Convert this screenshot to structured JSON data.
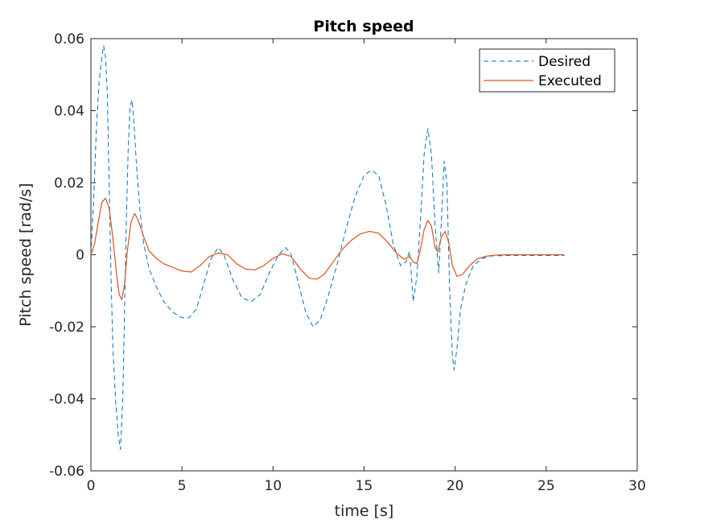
{
  "chart_data": {
    "type": "line",
    "title": "Pitch speed",
    "xlabel": "time [s]",
    "ylabel": "Pitch speed [rad/s]",
    "xlim": [
      0,
      30
    ],
    "ylim": [
      -0.06,
      0.06
    ],
    "xticks": [
      0,
      5,
      10,
      15,
      20,
      25,
      30
    ],
    "yticks": [
      -0.06,
      -0.04,
      -0.02,
      0,
      0.02,
      0.04,
      0.06
    ],
    "xtick_labels": [
      "0",
      "5",
      "10",
      "15",
      "20",
      "25",
      "30"
    ],
    "ytick_labels": [
      "-0.06",
      "-0.04",
      "-0.02",
      "0",
      "0.02",
      "0.04",
      "0.06"
    ],
    "grid": false,
    "legend_position": "top-right",
    "series": [
      {
        "name": "Desired",
        "color": "#0072BD",
        "style": "dashed",
        "points": [
          [
            0,
            0
          ],
          [
            0.15,
            0.015
          ],
          [
            0.3,
            0.035
          ],
          [
            0.45,
            0.048
          ],
          [
            0.6,
            0.055
          ],
          [
            0.7,
            0.058
          ],
          [
            0.8,
            0.055
          ],
          [
            0.9,
            0.045
          ],
          [
            1.0,
            0.02
          ],
          [
            1.1,
            -0.005
          ],
          [
            1.2,
            -0.025
          ],
          [
            1.35,
            -0.04
          ],
          [
            1.5,
            -0.05
          ],
          [
            1.62,
            -0.054
          ],
          [
            1.75,
            -0.04
          ],
          [
            1.85,
            -0.015
          ],
          [
            1.95,
            0.01
          ],
          [
            2.05,
            0.03
          ],
          [
            2.15,
            0.041
          ],
          [
            2.25,
            0.043
          ],
          [
            2.35,
            0.038
          ],
          [
            2.5,
            0.025
          ],
          [
            2.7,
            0.012
          ],
          [
            2.9,
            0.003
          ],
          [
            3.2,
            -0.004
          ],
          [
            3.6,
            -0.009
          ],
          [
            4.0,
            -0.013
          ],
          [
            4.5,
            -0.016
          ],
          [
            5.0,
            -0.0175
          ],
          [
            5.4,
            -0.0175
          ],
          [
            5.8,
            -0.015
          ],
          [
            6.2,
            -0.008
          ],
          [
            6.6,
            -0.001
          ],
          [
            7.0,
            0.002
          ],
          [
            7.3,
            0.0
          ],
          [
            7.8,
            -0.007
          ],
          [
            8.3,
            -0.012
          ],
          [
            8.8,
            -0.013
          ],
          [
            9.3,
            -0.011
          ],
          [
            9.8,
            -0.005
          ],
          [
            10.3,
            0.0
          ],
          [
            10.7,
            0.002
          ],
          [
            11.0,
            0.0
          ],
          [
            11.4,
            -0.008
          ],
          [
            11.8,
            -0.016
          ],
          [
            12.2,
            -0.02
          ],
          [
            12.6,
            -0.018
          ],
          [
            13.0,
            -0.012
          ],
          [
            13.5,
            -0.003
          ],
          [
            14.0,
            0.007
          ],
          [
            14.5,
            0.016
          ],
          [
            15.0,
            0.022
          ],
          [
            15.4,
            0.0235
          ],
          [
            15.8,
            0.022
          ],
          [
            16.2,
            0.014
          ],
          [
            16.6,
            0.003
          ],
          [
            17.0,
            -0.003
          ],
          [
            17.3,
            -0.002
          ],
          [
            17.5,
            0.001
          ],
          [
            17.7,
            -0.013
          ],
          [
            17.9,
            -0.006
          ],
          [
            18.1,
            0.01
          ],
          [
            18.3,
            0.028
          ],
          [
            18.5,
            0.035
          ],
          [
            18.7,
            0.028
          ],
          [
            18.9,
            0.008
          ],
          [
            19.1,
            -0.005
          ],
          [
            19.25,
            0.01
          ],
          [
            19.4,
            0.026
          ],
          [
            19.55,
            0.02
          ],
          [
            19.7,
            -0.01
          ],
          [
            19.85,
            -0.028
          ],
          [
            19.95,
            -0.032
          ],
          [
            20.1,
            -0.026
          ],
          [
            20.3,
            -0.015
          ],
          [
            20.6,
            -0.008
          ],
          [
            21.0,
            -0.003
          ],
          [
            21.5,
            -0.001
          ],
          [
            22.0,
            -0.0003
          ],
          [
            23.0,
            -0.0002
          ],
          [
            24.0,
            -0.0002
          ],
          [
            25.0,
            -0.0002
          ],
          [
            26.0,
            -0.0002
          ]
        ]
      },
      {
        "name": "Executed",
        "color": "#D95319",
        "style": "solid",
        "points": [
          [
            0,
            0
          ],
          [
            0.2,
            0.003
          ],
          [
            0.4,
            0.009
          ],
          [
            0.6,
            0.0145
          ],
          [
            0.8,
            0.0157
          ],
          [
            1.0,
            0.013
          ],
          [
            1.2,
            0.005
          ],
          [
            1.4,
            -0.005
          ],
          [
            1.55,
            -0.011
          ],
          [
            1.7,
            -0.0125
          ],
          [
            1.85,
            -0.008
          ],
          [
            2.0,
            0.001
          ],
          [
            2.2,
            0.009
          ],
          [
            2.4,
            0.0115
          ],
          [
            2.6,
            0.0095
          ],
          [
            2.9,
            0.005
          ],
          [
            3.2,
            0.001
          ],
          [
            3.6,
            -0.001
          ],
          [
            4.0,
            -0.0025
          ],
          [
            4.5,
            -0.0035
          ],
          [
            5.0,
            -0.0045
          ],
          [
            5.5,
            -0.0048
          ],
          [
            6.0,
            -0.003
          ],
          [
            6.5,
            -0.0005
          ],
          [
            7.0,
            0.0005
          ],
          [
            7.5,
            0.0
          ],
          [
            8.0,
            -0.0025
          ],
          [
            8.5,
            -0.004
          ],
          [
            9.0,
            -0.0042
          ],
          [
            9.5,
            -0.003
          ],
          [
            10.0,
            -0.001
          ],
          [
            10.5,
            0.0003
          ],
          [
            11.0,
            -0.0005
          ],
          [
            11.5,
            -0.004
          ],
          [
            12.0,
            -0.0065
          ],
          [
            12.4,
            -0.0068
          ],
          [
            12.8,
            -0.0055
          ],
          [
            13.3,
            -0.002
          ],
          [
            13.8,
            0.0015
          ],
          [
            14.3,
            0.004
          ],
          [
            14.8,
            0.0058
          ],
          [
            15.3,
            0.0065
          ],
          [
            15.8,
            0.006
          ],
          [
            16.3,
            0.0035
          ],
          [
            16.8,
            0.0003
          ],
          [
            17.2,
            -0.0012
          ],
          [
            17.5,
            -0.0005
          ],
          [
            17.7,
            -0.002
          ],
          [
            17.9,
            -0.0025
          ],
          [
            18.1,
            0.0015
          ],
          [
            18.3,
            0.007
          ],
          [
            18.5,
            0.0095
          ],
          [
            18.7,
            0.008
          ],
          [
            18.9,
            0.002
          ],
          [
            19.05,
            0.0008
          ],
          [
            19.25,
            0.005
          ],
          [
            19.45,
            0.0065
          ],
          [
            19.65,
            0.0035
          ],
          [
            19.85,
            -0.003
          ],
          [
            20.1,
            -0.006
          ],
          [
            20.4,
            -0.0055
          ],
          [
            20.8,
            -0.003
          ],
          [
            21.2,
            -0.0012
          ],
          [
            21.7,
            -0.0004
          ],
          [
            22.2,
            -0.0001
          ],
          [
            23.0,
            0.0
          ],
          [
            24.0,
            0.0
          ],
          [
            25.0,
            0.0
          ],
          [
            26.0,
            0.0
          ]
        ]
      }
    ]
  }
}
